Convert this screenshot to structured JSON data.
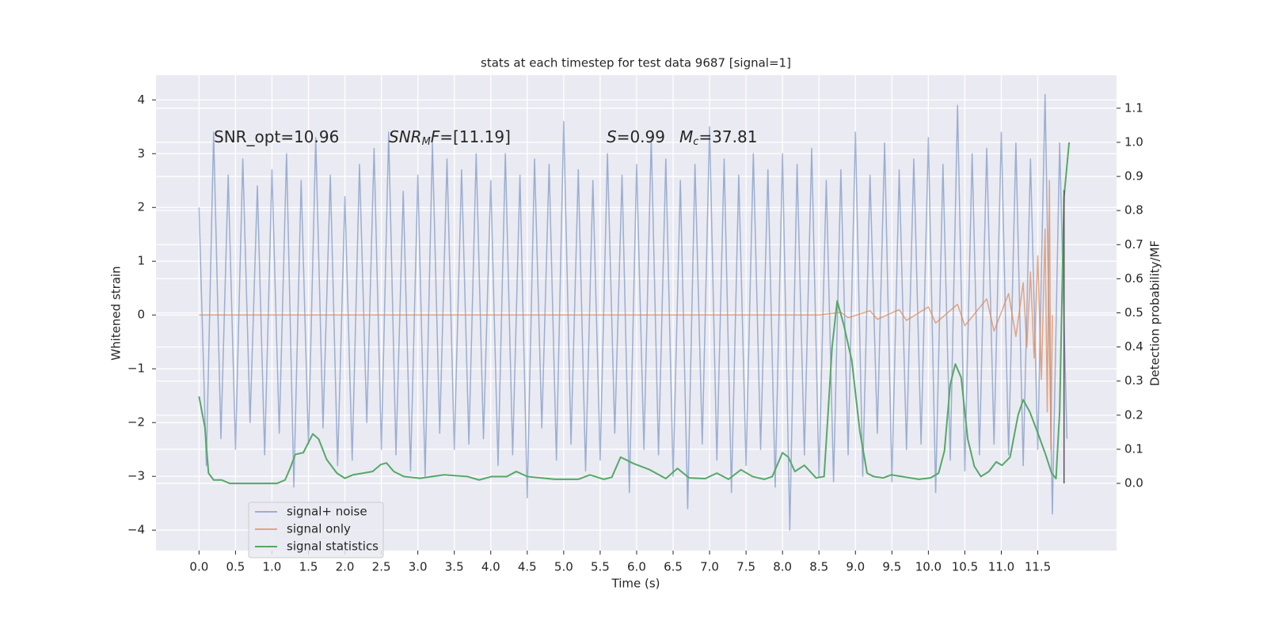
{
  "chart_data": {
    "type": "line",
    "title": "stats at each timestep for test data 9687 [signal=1]",
    "xlabel": "Time (s)",
    "ylabel": "Whitened strain",
    "y2label": "Detection probability/MF",
    "annotations": [
      [
        "SNR_opt=10.96"
      ],
      [
        "SNR",
        "M",
        "F",
        "=[11.19]"
      ],
      [
        "S",
        "=0.99"
      ],
      [
        "M",
        "c",
        "=37.81"
      ]
    ],
    "xlim": [
      -0.59,
      12.58
    ],
    "ylim": [
      -4.38,
      4.46
    ],
    "y2lim": [
      -0.197,
      1.197
    ],
    "xticks": [
      {
        "value": 0,
        "label": "0.0"
      },
      {
        "value": 0.5,
        "label": "0.5"
      },
      {
        "value": 1,
        "label": "1.0"
      },
      {
        "value": 1.5,
        "label": "1.5"
      },
      {
        "value": 2,
        "label": "2.0"
      },
      {
        "value": 2.5,
        "label": "2.5"
      },
      {
        "value": 3,
        "label": "3.0"
      },
      {
        "value": 3.5,
        "label": "3.5"
      },
      {
        "value": 4,
        "label": "4.0"
      },
      {
        "value": 4.5,
        "label": "4.5"
      },
      {
        "value": 5,
        "label": "5.0"
      },
      {
        "value": 5.5,
        "label": "5.5"
      },
      {
        "value": 6,
        "label": "6.0"
      },
      {
        "value": 6.5,
        "label": "6.5"
      },
      {
        "value": 7,
        "label": "7.0"
      },
      {
        "value": 7.5,
        "label": "7.5"
      },
      {
        "value": 8,
        "label": "8.0"
      },
      {
        "value": 8.5,
        "label": "8.5"
      },
      {
        "value": 9,
        "label": "9.0"
      },
      {
        "value": 9.5,
        "label": "9.5"
      },
      {
        "value": 10,
        "label": "10.0"
      },
      {
        "value": 10.5,
        "label": "10.5"
      },
      {
        "value": 11,
        "label": "11.0"
      },
      {
        "value": 11.5,
        "label": "11.5"
      }
    ],
    "yticks": [
      {
        "value": -4,
        "label": "−4"
      },
      {
        "value": -3,
        "label": "−3"
      },
      {
        "value": -2,
        "label": "−2"
      },
      {
        "value": -1,
        "label": "−1"
      },
      0,
      1,
      2,
      3,
      4
    ],
    "y2ticks": [
      {
        "value": 0,
        "label": "0.0"
      },
      {
        "value": 0.1,
        "label": "0.1"
      },
      {
        "value": 0.2,
        "label": "0.2"
      },
      {
        "value": 0.3,
        "label": "0.3"
      },
      {
        "value": 0.4,
        "label": "0.4"
      },
      {
        "value": 0.5,
        "label": "0.5"
      },
      {
        "value": 0.6,
        "label": "0.6"
      },
      {
        "value": 0.7,
        "label": "0.7"
      },
      {
        "value": 0.8,
        "label": "0.8"
      },
      {
        "value": 0.9,
        "label": "0.9"
      },
      {
        "value": 1,
        "label": "1.0"
      },
      {
        "value": 1.1,
        "label": "1.1"
      }
    ],
    "grid": true,
    "legend": "lower left",
    "series": [
      {
        "name": "signal+ noise",
        "color": "#4c72b0",
        "opacity": 0.5,
        "x": [
          0,
          0.1,
          0.2,
          0.3,
          0.4,
          0.5,
          0.6,
          0.7,
          0.8,
          0.9,
          1,
          1.1,
          1.2,
          1.3,
          1.4,
          1.5,
          1.6,
          1.7,
          1.8,
          1.9,
          2,
          2.1,
          2.2,
          2.3,
          2.4,
          2.5,
          2.6,
          2.7,
          2.8,
          2.9,
          3,
          3.1,
          3.2,
          3.3,
          3.4,
          3.5,
          3.6,
          3.7,
          3.8,
          3.9,
          4,
          4.1,
          4.2,
          4.3,
          4.4,
          4.5,
          4.6,
          4.7,
          4.8,
          4.9,
          5,
          5.1,
          5.2,
          5.3,
          5.4,
          5.5,
          5.6,
          5.7,
          5.8,
          5.9,
          6,
          6.1,
          6.2,
          6.3,
          6.4,
          6.5,
          6.6,
          6.7,
          6.8,
          6.9,
          7,
          7.1,
          7.2,
          7.3,
          7.4,
          7.5,
          7.6,
          7.7,
          7.8,
          7.9,
          8,
          8.1,
          8.2,
          8.3,
          8.4,
          8.5,
          8.6,
          8.7,
          8.8,
          8.9,
          9,
          9.1,
          9.2,
          9.3,
          9.4,
          9.5,
          9.6,
          9.7,
          9.8,
          9.9,
          10,
          10.1,
          10.2,
          10.3,
          10.4,
          10.5,
          10.6,
          10.7,
          10.8,
          10.9,
          11,
          11.1,
          11.2,
          11.3,
          11.4,
          11.5,
          11.6,
          11.7,
          11.8,
          11.9
        ],
        "values": [
          2.0,
          -2.8,
          3.4,
          -2.3,
          2.6,
          -2.5,
          2.9,
          -2.0,
          2.4,
          -2.6,
          2.7,
          -2.2,
          3.0,
          -3.2,
          2.5,
          -2.4,
          3.3,
          -2.1,
          2.6,
          -2.8,
          2.2,
          -2.7,
          2.8,
          -2.0,
          3.1,
          -2.5,
          3.4,
          -2.6,
          2.3,
          -2.9,
          2.6,
          -3.0,
          3.2,
          -2.2,
          2.9,
          -2.5,
          2.7,
          -2.4,
          3.0,
          -2.3,
          2.5,
          -2.8,
          3.0,
          -2.6,
          2.6,
          -3.4,
          2.9,
          -2.1,
          2.8,
          -2.7,
          3.6,
          -2.4,
          2.7,
          -2.9,
          2.5,
          -2.7,
          3.0,
          -2.2,
          2.6,
          -3.3,
          2.8,
          -2.5,
          3.3,
          -2.6,
          2.9,
          -3.0,
          2.5,
          -3.6,
          2.8,
          -2.4,
          3.5,
          -2.7,
          2.9,
          -3.3,
          2.6,
          -2.8,
          3.0,
          -2.5,
          2.7,
          -3.2,
          3.0,
          -4.0,
          2.8,
          -2.6,
          3.1,
          -3.0,
          2.5,
          -3.1,
          2.7,
          -2.6,
          3.4,
          -3.0,
          2.6,
          -2.2,
          3.2,
          -3.1,
          2.7,
          -2.5,
          2.9,
          -2.4,
          3.3,
          -3.3,
          2.8,
          -2.7,
          3.9,
          -2.9,
          3.0,
          -2.6,
          3.1,
          -2.4,
          3.4,
          -2.6,
          3.2,
          -2.8,
          2.9,
          -2.5,
          4.1,
          -3.7,
          3.2,
          -2.3
        ]
      },
      {
        "name": "signal only",
        "color": "#dd8452",
        "opacity": 0.7,
        "x": [
          0,
          8.5,
          8.8,
          8.9,
          9.2,
          9.3,
          9.6,
          9.7,
          10.0,
          10.1,
          10.4,
          10.5,
          10.8,
          10.9,
          11.1,
          11.2,
          11.3,
          11.35,
          11.4,
          11.45,
          11.5,
          11.55,
          11.6,
          11.63,
          11.66,
          11.68,
          11.7
        ],
        "values": [
          0,
          0,
          0.05,
          -0.05,
          0.08,
          -0.08,
          0.1,
          -0.1,
          0.15,
          -0.15,
          0.2,
          -0.2,
          0.3,
          -0.3,
          0.4,
          -0.4,
          0.6,
          -0.6,
          0.8,
          -0.8,
          1.1,
          -1.2,
          1.6,
          -1.8,
          2.5,
          -2.5,
          0
        ]
      },
      {
        "name": "signal statistics",
        "color": "#55a868",
        "opacity": 1,
        "axis": "y2",
        "x": [
          0,
          0.08,
          0.13,
          0.2,
          0.31,
          0.42,
          0.75,
          1.07,
          1.18,
          1.25,
          1.32,
          1.43,
          1.56,
          1.64,
          1.75,
          1.89,
          2.0,
          2.11,
          2.25,
          2.38,
          2.49,
          2.57,
          2.67,
          2.81,
          3.03,
          3.36,
          3.68,
          3.84,
          4.01,
          4.22,
          4.35,
          4.5,
          4.88,
          5.2,
          5.36,
          5.55,
          5.66,
          5.78,
          5.96,
          6.18,
          6.4,
          6.56,
          6.72,
          6.94,
          7.1,
          7.26,
          7.43,
          7.59,
          7.75,
          7.86,
          8.0,
          8.08,
          8.17,
          8.3,
          8.46,
          8.57,
          8.62,
          8.68,
          8.75,
          8.84,
          8.95,
          9.06,
          9.16,
          9.25,
          9.38,
          9.49,
          9.87,
          10.03,
          10.14,
          10.22,
          10.3,
          10.37,
          10.45,
          10.54,
          10.63,
          10.72,
          10.83,
          10.93,
          11.01,
          11.12,
          11.23,
          11.3,
          11.39,
          11.5,
          11.61,
          11.69,
          11.75,
          11.8,
          11.86,
          11.93
        ],
        "values": [
          0.255,
          0.165,
          0.03,
          0.01,
          0.01,
          0,
          0,
          0,
          0.01,
          0.045,
          0.085,
          0.09,
          0.145,
          0.13,
          0.07,
          0.03,
          0.015,
          0.025,
          0.03,
          0.035,
          0.055,
          0.06,
          0.035,
          0.02,
          0.015,
          0.025,
          0.02,
          0.01,
          0.02,
          0.02,
          0.035,
          0.02,
          0.012,
          0.012,
          0.025,
          0.012,
          0.018,
          0.077,
          0.058,
          0.04,
          0.014,
          0.044,
          0.016,
          0.014,
          0.03,
          0.012,
          0.04,
          0.02,
          0.012,
          0.02,
          0.09,
          0.077,
          0.035,
          0.053,
          0.016,
          0.02,
          0.19,
          0.4,
          0.535,
          0.465,
          0.36,
          0.153,
          0.03,
          0.02,
          0.016,
          0.025,
          0.012,
          0.016,
          0.03,
          0.095,
          0.29,
          0.35,
          0.31,
          0.13,
          0.05,
          0.02,
          0.035,
          0.063,
          0.053,
          0.077,
          0.2,
          0.245,
          0.21,
          0.148,
          0.083,
          0.03,
          0.014,
          0.21,
          0.84,
          1.0
        ]
      }
    ],
    "vline": {
      "x": 11.86,
      "y2": [
        0,
        0.86
      ],
      "color": "#555555"
    }
  }
}
